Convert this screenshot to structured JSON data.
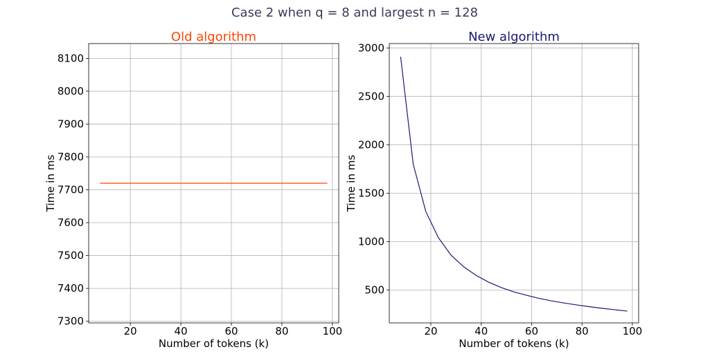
{
  "suptitle": "Case 2 when q = 8 and largest n = 128",
  "colors": {
    "old": "#ff4500",
    "new": "#191970",
    "suptitle": "#3a3a5c"
  },
  "chart_data": [
    {
      "type": "line",
      "title": "Old algorithm",
      "xlabel": "Number of tokens (k)",
      "ylabel": "Time in ms",
      "xlim": [
        3.5,
        102.5
      ],
      "ylim": [
        7295,
        8145
      ],
      "xticks": [
        20,
        40,
        60,
        80,
        100
      ],
      "yticks": [
        7300,
        7400,
        7500,
        7600,
        7700,
        7800,
        7900,
        8000,
        8100
      ],
      "grid": true,
      "series": [
        {
          "x": [
            8,
            98
          ],
          "y": [
            7720,
            7720
          ]
        }
      ]
    },
    {
      "type": "line",
      "title": "New algorithm",
      "xlabel": "Number of tokens (k)",
      "ylabel": "Time in ms",
      "xlim": [
        3.5,
        102.5
      ],
      "ylim": [
        160,
        3045
      ],
      "xticks": [
        20,
        40,
        60,
        80,
        100
      ],
      "yticks": [
        500,
        1000,
        1500,
        2000,
        2500,
        3000
      ],
      "grid": true,
      "series": [
        {
          "x": [
            8,
            13,
            18,
            23,
            28,
            33,
            38,
            43,
            48,
            53,
            58,
            63,
            68,
            73,
            78,
            83,
            88,
            93,
            98
          ],
          "y": [
            2910,
            1800,
            1310,
            1040,
            860,
            740,
            650,
            580,
            525,
            480,
            445,
            413,
            387,
            365,
            345,
            327,
            311,
            296,
            282
          ]
        }
      ]
    }
  ]
}
